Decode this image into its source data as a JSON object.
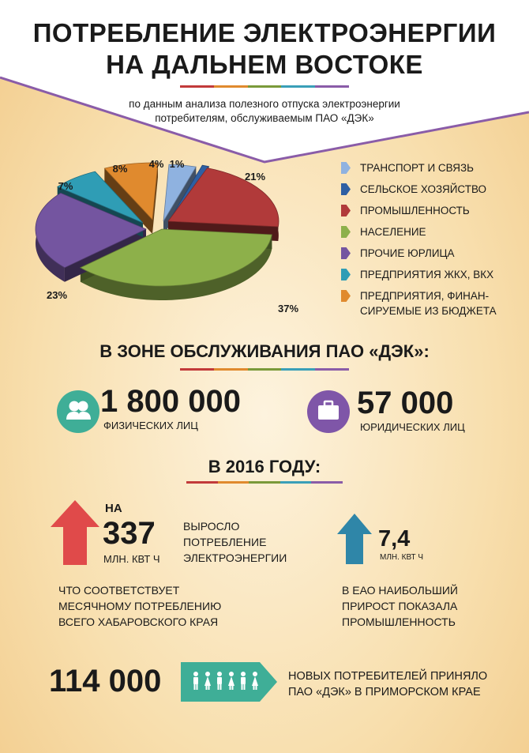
{
  "header": {
    "title_line1": "ПОТРЕБЛЕНИЕ ЭЛЕКТРОЭНЕРГИИ",
    "title_line2": "НА ДАЛЬНЕМ ВОСТОКЕ",
    "subtitle_line1": "по данным анализа полезного отпуска электроэнергии",
    "subtitle_line2": "потребителям, обслуживаемым  ПАО «ДЭК»"
  },
  "colors": {
    "accent_purple": "#8a5ca8",
    "underline": [
      "#c23a3a",
      "#e08a2e",
      "#7a9a3a",
      "#3a9fb8",
      "#8a5ca8"
    ]
  },
  "chart_data": {
    "type": "pie",
    "title": "",
    "slices": [
      {
        "label": "ТРАНСПОРТ И СВЯЗЬ",
        "value": 4,
        "label_text": "4%",
        "color": "#8fb2e0"
      },
      {
        "label": "СЕЛЬСКОЕ ХОЗЯЙСТВО",
        "value": 1,
        "label_text": "1%",
        "color": "#2e5fa3"
      },
      {
        "label": "ПРОМЫШЛЕННОСТЬ",
        "value": 21,
        "label_text": "21%",
        "color": "#b13a3a"
      },
      {
        "label": "НАСЕЛЕНИЕ",
        "value": 37,
        "label_text": "37%",
        "color": "#8db04a"
      },
      {
        "label": "ПРОЧИЕ ЮРЛИЦА",
        "value": 23,
        "label_text": "23%",
        "color": "#7455a0"
      },
      {
        "label": "ПРЕДПРИЯТИЯ ЖКХ, ВКХ",
        "value": 7,
        "label_text": "7%",
        "color": "#2f9db5"
      },
      {
        "label": "ПРЕДПРИЯТИЯ,  ФИНАН-СИРУЕМЫЕ ИЗ БЮДЖЕТА",
        "value": 8,
        "label_text": "8%",
        "color": "#e08a2e"
      }
    ]
  },
  "legend": [
    {
      "line1": "ТРАНСПОРТ И СВЯЗЬ",
      "line2": "",
      "color": "#8fb2e0"
    },
    {
      "line1": "СЕЛЬСКОЕ ХОЗЯЙСТВО",
      "line2": "",
      "color": "#2e5fa3"
    },
    {
      "line1": "ПРОМЫШЛЕННОСТЬ",
      "line2": "",
      "color": "#b13a3a"
    },
    {
      "line1": "НАСЕЛЕНИЕ",
      "line2": "",
      "color": "#8db04a"
    },
    {
      "line1": "ПРОЧИЕ ЮРЛИЦА",
      "line2": "",
      "color": "#7455a0"
    },
    {
      "line1": "ПРЕДПРИЯТИЯ ЖКХ, ВКХ",
      "line2": "",
      "color": "#2f9db5"
    },
    {
      "line1": "ПРЕДПРИЯТИЯ,  ФИНАН-",
      "line2": "СИРУЕМЫЕ ИЗ БЮДЖЕТА",
      "color": "#e08a2e"
    }
  ],
  "zone": {
    "title": "В ЗОНЕ ОБСЛУЖИВАНИЯ ПАО «ДЭК»:",
    "individuals_value": "1 800 000",
    "individuals_label": "ФИЗИЧЕСКИХ ЛИЦ",
    "individuals_icon": "people-icon",
    "legal_value": "57 000",
    "legal_label": "ЮРИДИЧЕСКИХ ЛИЦ",
    "legal_icon": "briefcase-icon"
  },
  "year": {
    "title": "В 2016 ГОДУ:",
    "na": "НА",
    "growth_value": "337",
    "growth_unit": "МЛН. КВТ Ч",
    "growth_desc_line1": "ВЫРОСЛО",
    "growth_desc_line2": "ПОТРЕБЛЕНИЕ",
    "growth_desc_line3": "ЭЛЕКТРОЭНЕРГИИ",
    "equiv_line1": "ЧТО СООТВЕТСТВУЕТ",
    "equiv_line2": "МЕСЯЧНОМУ ПОТРЕБЛЕНИЮ",
    "equiv_line3": "ВСЕГО ХАБАРОВСКОГО КРАЯ",
    "eao_value": "7,4",
    "eao_unit": "МЛН. КВТ Ч",
    "eao_line1": "В ЕАО НАИБОЛЬШИЙ",
    "eao_line2": "ПРИРОСТ ПОКАЗАЛА",
    "eao_line3": "ПРОМЫШЛЕННОСТЬ"
  },
  "new_consumers": {
    "value": "114 000",
    "line1": "НОВЫХ ПОТРЕБИТЕЛЕЙ ПРИНЯЛО",
    "line2": "ПАО «ДЭК» В ПРИМОРСКОМ КРАЕ"
  }
}
